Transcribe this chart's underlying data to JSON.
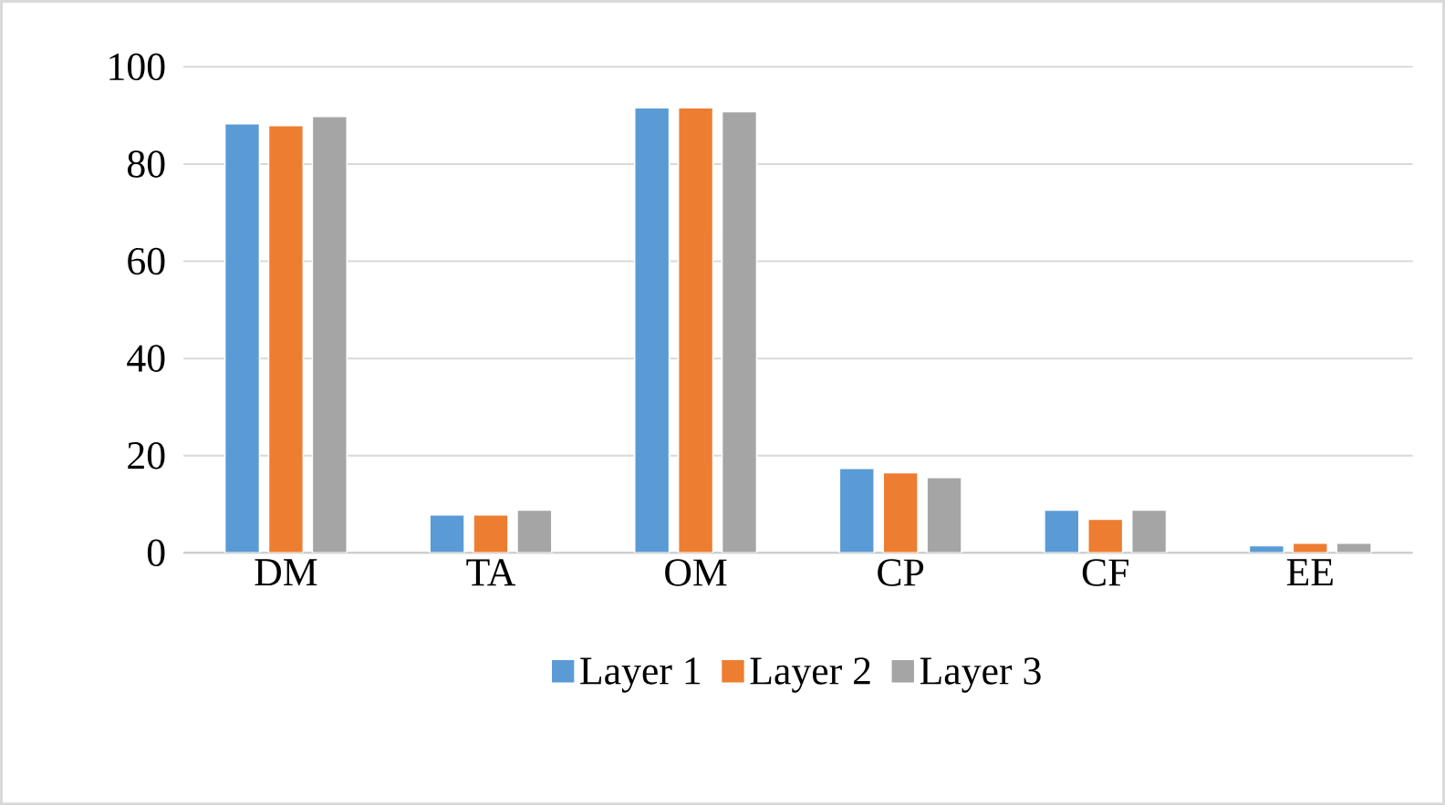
{
  "chart_data": {
    "type": "bar",
    "categories": [
      "DM",
      "TA",
      "OM",
      "CP",
      "CF",
      "EE"
    ],
    "series": [
      {
        "name": "Layer 1",
        "color": "#5b9bd5",
        "values": [
          88.3,
          7.8,
          91.6,
          17.4,
          8.8,
          1.5
        ]
      },
      {
        "name": "Layer 2",
        "color": "#ed7d31",
        "values": [
          87.9,
          7.8,
          91.6,
          16.5,
          6.9,
          2
        ]
      },
      {
        "name": "Layer 3",
        "color": "#a5a5a5",
        "values": [
          89.8,
          8.8,
          90.8,
          15.5,
          8.8,
          2
        ]
      }
    ],
    "ylim": [
      0,
      100
    ],
    "yticks": [
      0,
      20,
      40,
      60,
      80,
      100
    ],
    "grid": "y",
    "legend": "bottom"
  }
}
